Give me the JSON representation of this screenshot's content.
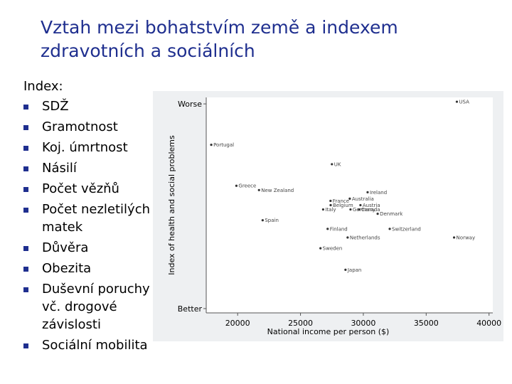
{
  "title": [
    "Vztah mezi bohatstvím země a indexem",
    "zdravotních a sociálních"
  ],
  "list": {
    "heading": "Index:",
    "items": [
      "SDŽ",
      "Gramotnost",
      "Koj. úmrtnost",
      "Násilí",
      "Počet vězňů",
      "Počet nezletilých matek",
      "Důvěra",
      "Obezita",
      "Duševní poruchy vč. drogové závislosti",
      "Sociální mobilita"
    ]
  },
  "chart_data": {
    "type": "scatter",
    "x_label": "National income per person ($)",
    "y_label": "Index of health and social problems",
    "labels": [
      "USA",
      "Portugal",
      "UK",
      "Greece",
      "New Zealand",
      "Ireland",
      "France",
      "Australia",
      "Belgium",
      "Austria",
      "Italy",
      "Germany",
      "Canada",
      "Denmark",
      "Spain",
      "Finland",
      "Switzerland",
      "Netherlands",
      "Norway",
      "Sweden",
      "Japan"
    ],
    "x": [
      37440,
      17900,
      27500,
      19900,
      21700,
      30340,
      27390,
      28920,
      27400,
      29770,
      26800,
      28980,
      29660,
      31140,
      21990,
      27160,
      32100,
      28750,
      37220,
      26590,
      28580
    ],
    "y": [
      98,
      78,
      69,
      59,
      57,
      56,
      52,
      53,
      50,
      50,
      48,
      48,
      48,
      46,
      43,
      39,
      39,
      35,
      35,
      30,
      20
    ],
    "color": "#333333",
    "xlim": [
      17500,
      40300
    ],
    "xticks": [
      20000,
      25000,
      30000,
      35000,
      40000
    ],
    "ylim": [
      0,
      100
    ],
    "yticks": [
      {
        "value": 97,
        "label": "Worse"
      },
      {
        "value": 2,
        "label": "Better"
      }
    ]
  }
}
